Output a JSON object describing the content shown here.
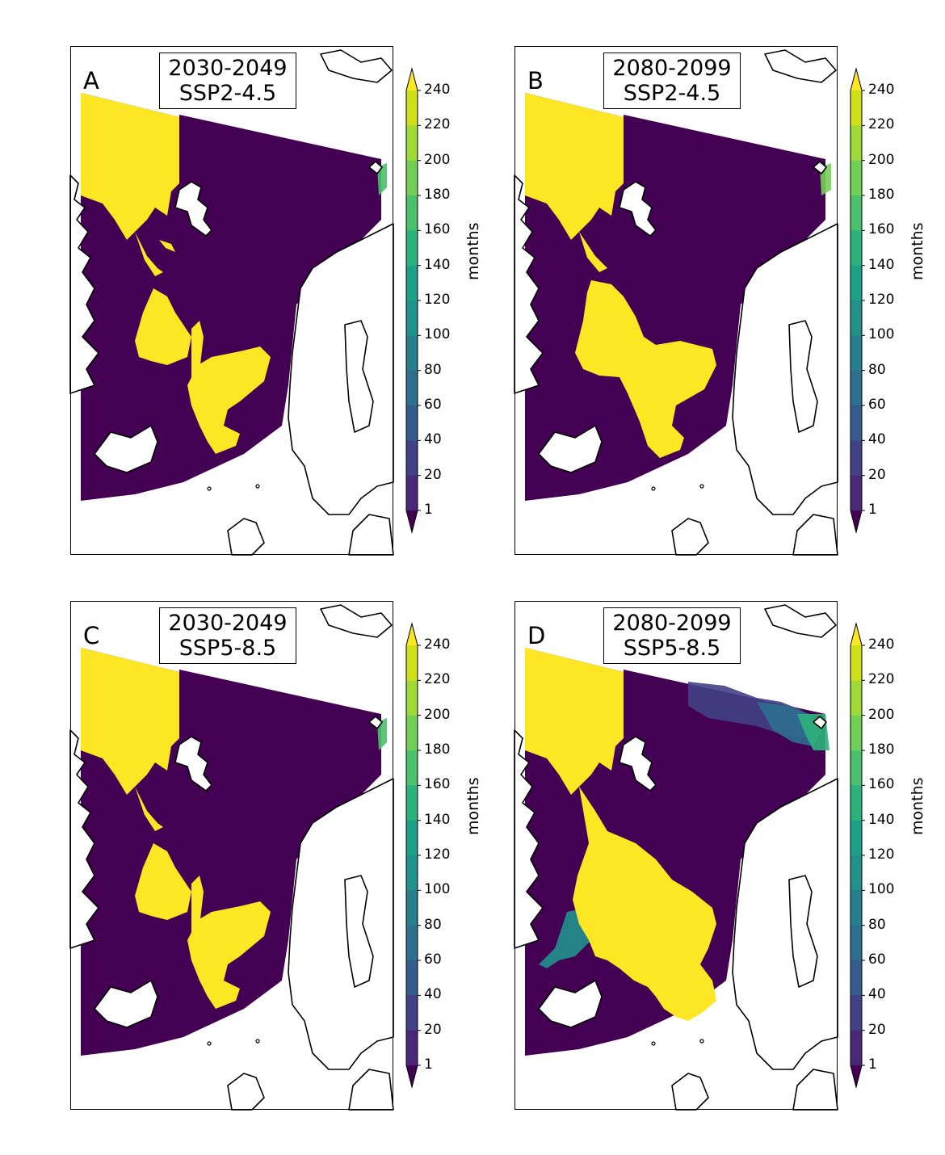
{
  "figure": {
    "background": "#ffffff",
    "colorbar": {
      "label": "months",
      "ticks": [
        "240",
        "220",
        "200",
        "180",
        "160",
        "140",
        "120",
        "100",
        "80",
        "60",
        "40",
        "20",
        "1"
      ],
      "bins": [
        "#d0e11c",
        "#a0da39",
        "#73d056",
        "#4ac16d",
        "#2db27d",
        "#1fa187",
        "#21918c",
        "#277f8e",
        "#2e6f8e",
        "#365c8d",
        "#424086",
        "#482878"
      ],
      "over_color": "#fde725",
      "under_color": "#440154",
      "extend": "both"
    }
  },
  "panels": [
    {
      "letter": "A",
      "period": "2030-2049",
      "scenario": "SSP2-4.5"
    },
    {
      "letter": "B",
      "period": "2080-2099",
      "scenario": "SSP2-4.5"
    },
    {
      "letter": "C",
      "period": "2030-2049",
      "scenario": "SSP5-8.5"
    },
    {
      "letter": "D",
      "period": "2080-2099",
      "scenario": "SSP5-8.5"
    }
  ],
  "chart_data": {
    "type": "heatmap",
    "title": "Projected duration (months) of exposure across North Atlantic / Nordic Seas region",
    "layout": "2x2 grid of map panels",
    "panels": [
      {
        "letter": "A",
        "period": "2030-2049",
        "scenario": "SSP2-4.5",
        "description": "High values (>=240 months) in NW Greenland/Baffin region, a central Norwegian Sea patch and a band from Jan Mayen towards Faroe-Shetland; rest near 1 month"
      },
      {
        "letter": "B",
        "period": "2080-2099",
        "scenario": "SSP2-4.5",
        "description": "Central high-value region (>=240) larger and more connected than A; remainder near 1 month"
      },
      {
        "letter": "C",
        "period": "2030-2049",
        "scenario": "SSP5-8.5",
        "description": "Pattern similar to A with slightly different patch extents"
      },
      {
        "letter": "D",
        "period": "2080-2099",
        "scenario": "SSP5-8.5",
        "description": "Largest high-value area covering most of the Norwegian/Greenland Seas; intermediate values (20-100) in the northeast Barents region"
      }
    ],
    "colorbar": {
      "label": "months",
      "ticks": [
        1,
        20,
        40,
        60,
        80,
        100,
        120,
        140,
        160,
        180,
        200,
        220,
        240
      ],
      "colormap": "viridis",
      "extend": "both",
      "range": [
        1,
        240
      ]
    }
  }
}
